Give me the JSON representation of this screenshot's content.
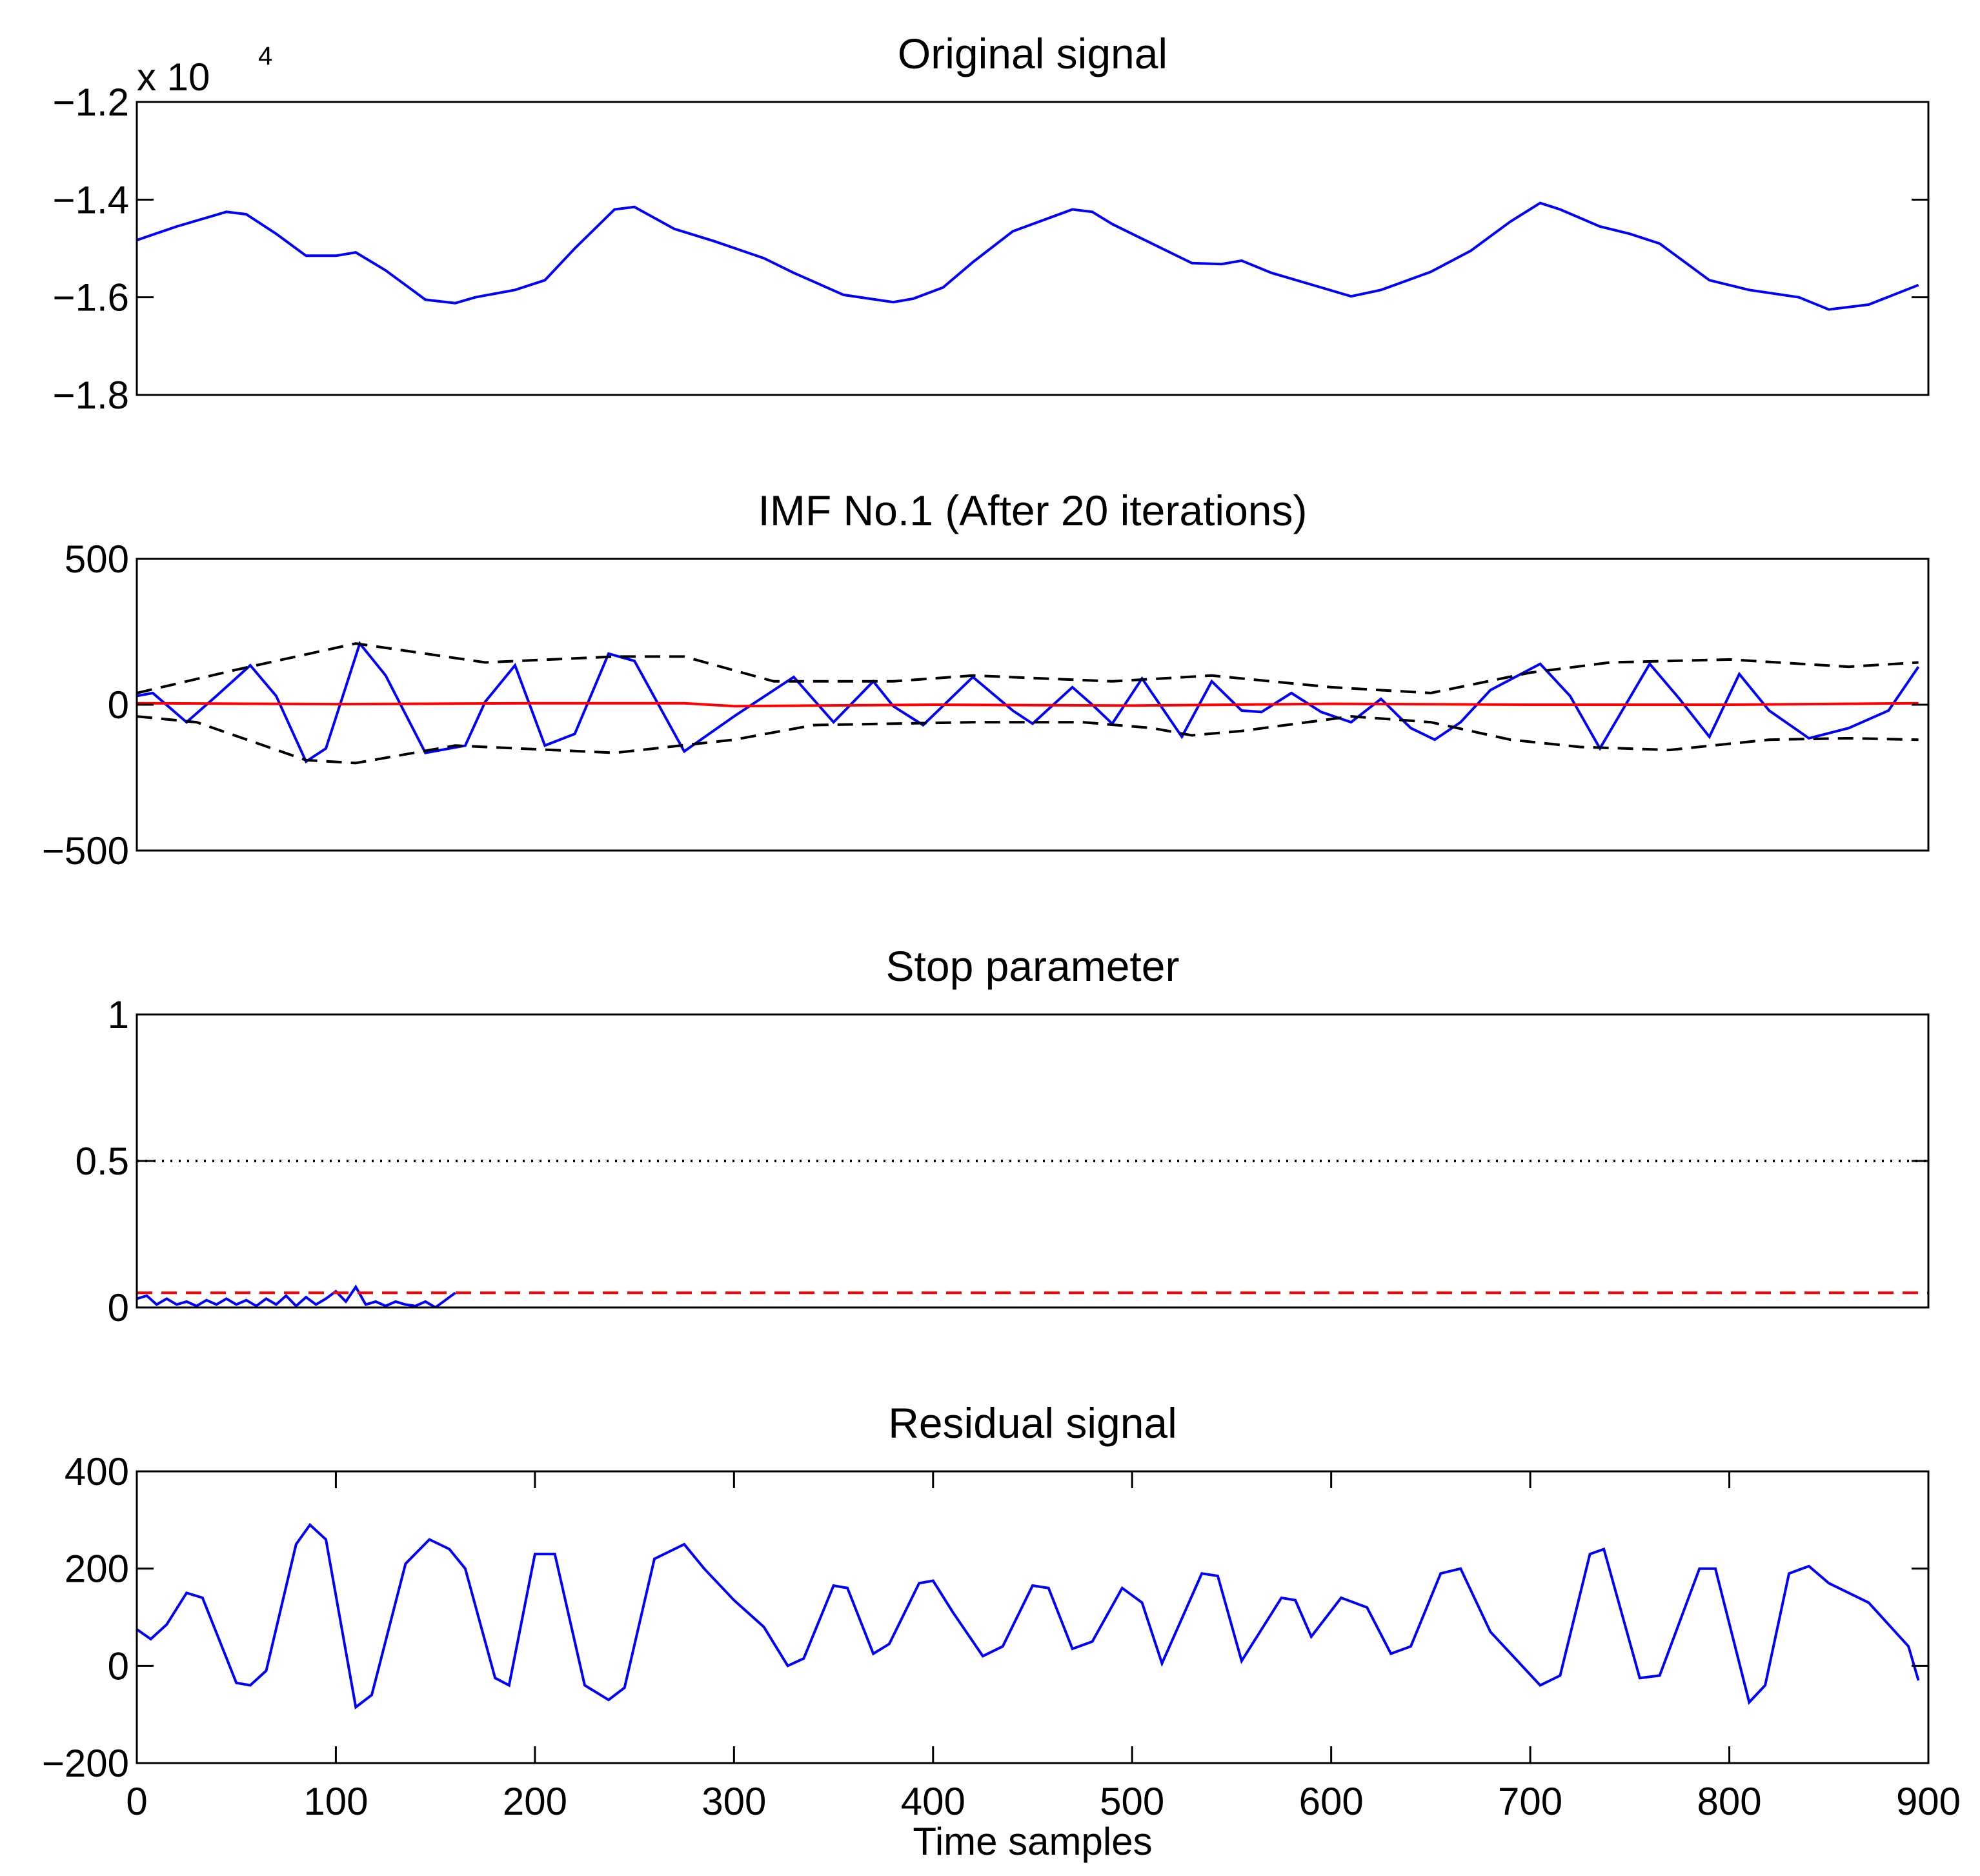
{
  "chart_data": [
    {
      "type": "line",
      "title": "Original signal",
      "xlabel": "",
      "ylabel": "",
      "xlim": [
        0,
        900
      ],
      "ylim": [
        -1.8,
        -1.2
      ],
      "y_scale_label": {
        "base": "x 10",
        "exponent": "4"
      },
      "yticks": [
        -1.8,
        -1.6,
        -1.4,
        -1.2
      ],
      "ytick_labels": [
        "−1.8",
        "−1.6",
        "−1.4",
        "−1.2"
      ],
      "series": [
        {
          "name": "signal",
          "color": "#0000ff",
          "style": "solid",
          "x": [
            0,
            20,
            45,
            55,
            70,
            85,
            100,
            110,
            125,
            145,
            160,
            170,
            190,
            205,
            220,
            240,
            250,
            270,
            290,
            315,
            330,
            355,
            380,
            390,
            405,
            420,
            440,
            470,
            480,
            490,
            505,
            530,
            545,
            555,
            570,
            595,
            610,
            625,
            650,
            670,
            690,
            705,
            715,
            735,
            750,
            765,
            790,
            810,
            835,
            850,
            870,
            895
          ],
          "y": [
            -1.483,
            -1.455,
            -1.425,
            -1.43,
            -1.47,
            -1.515,
            -1.515,
            -1.508,
            -1.545,
            -1.605,
            -1.612,
            -1.6,
            -1.585,
            -1.565,
            -1.5,
            -1.42,
            -1.415,
            -1.46,
            -1.485,
            -1.52,
            -1.55,
            -1.595,
            -1.61,
            -1.603,
            -1.58,
            -1.528,
            -1.465,
            -1.42,
            -1.425,
            -1.45,
            -1.48,
            -1.53,
            -1.532,
            -1.525,
            -1.55,
            -1.58,
            -1.598,
            -1.585,
            -1.548,
            -1.505,
            -1.445,
            -1.407,
            -1.42,
            -1.455,
            -1.47,
            -1.49,
            -1.565,
            -1.585,
            -1.6,
            -1.625,
            -1.615,
            -1.575
          ]
        }
      ]
    },
    {
      "type": "line",
      "title": "IMF No.1 (After 20 iterations)",
      "xlabel": "",
      "ylabel": "",
      "xlim": [
        0,
        900
      ],
      "ylim": [
        -500,
        500
      ],
      "yticks": [
        -500,
        0,
        500
      ],
      "ytick_labels": [
        "−500",
        "0",
        "500"
      ],
      "series": [
        {
          "name": "IMF",
          "color": "#0000ff",
          "style": "solid",
          "x": [
            0,
            8,
            25,
            40,
            57,
            70,
            85,
            95,
            112,
            125,
            145,
            165,
            175,
            190,
            205,
            220,
            237,
            250,
            275,
            300,
            330,
            350,
            370,
            380,
            395,
            420,
            440,
            450,
            470,
            480,
            490,
            505,
            525,
            540,
            555,
            565,
            580,
            595,
            610,
            625,
            640,
            652,
            665,
            680,
            705,
            720,
            735,
            760,
            775,
            790,
            805,
            820,
            840,
            860,
            880,
            895
          ],
          "y": [
            30,
            40,
            -60,
            30,
            135,
            30,
            -195,
            -150,
            210,
            100,
            -165,
            -140,
            10,
            135,
            -140,
            -100,
            175,
            150,
            -160,
            -40,
            95,
            -60,
            80,
            -5,
            -70,
            95,
            -20,
            -65,
            60,
            0,
            -65,
            90,
            -110,
            80,
            -20,
            -25,
            40,
            -25,
            -60,
            20,
            -80,
            -120,
            -60,
            50,
            140,
            30,
            -150,
            140,
            20,
            -110,
            105,
            -20,
            -115,
            -80,
            -20,
            130
          ]
        },
        {
          "name": "mean envelope",
          "color": "#ff0000",
          "style": "solid",
          "x": [
            0,
            100,
            200,
            275,
            300,
            400,
            500,
            600,
            700,
            800,
            895
          ],
          "y": [
            5,
            2,
            5,
            5,
            -5,
            0,
            -3,
            3,
            0,
            0,
            5
          ]
        },
        {
          "name": "upper envelope",
          "color": "#000000",
          "style": "dashed",
          "x": [
            0,
            50,
            110,
            175,
            240,
            275,
            320,
            380,
            420,
            490,
            540,
            600,
            650,
            700,
            740,
            800,
            860,
            895
          ],
          "y": [
            40,
            120,
            210,
            145,
            165,
            165,
            80,
            80,
            100,
            80,
            100,
            60,
            40,
            110,
            145,
            155,
            130,
            145
          ]
        },
        {
          "name": "lower envelope",
          "color": "#000000",
          "style": "dashed",
          "x": [
            0,
            30,
            85,
            110,
            160,
            240,
            300,
            340,
            420,
            475,
            510,
            530,
            555,
            610,
            650,
            690,
            725,
            770,
            820,
            860,
            895
          ],
          "y": [
            -40,
            -60,
            -190,
            -200,
            -140,
            -165,
            -120,
            -70,
            -60,
            -60,
            -80,
            -105,
            -90,
            -40,
            -60,
            -120,
            -145,
            -155,
            -120,
            -115,
            -120
          ]
        }
      ]
    },
    {
      "type": "line",
      "title": "Stop parameter",
      "xlabel": "",
      "ylabel": "",
      "xlim": [
        0,
        900
      ],
      "ylim": [
        0,
        1
      ],
      "yticks": [
        0,
        0.5,
        1
      ],
      "ytick_labels": [
        "0",
        "0.5",
        "1"
      ],
      "series": [
        {
          "name": "stop parameter",
          "color": "#0000ff",
          "style": "solid",
          "x": [
            0,
            5,
            10,
            15,
            20,
            25,
            30,
            35,
            40,
            45,
            50,
            55,
            60,
            65,
            70,
            75,
            80,
            85,
            90,
            95,
            100,
            105,
            110,
            115,
            120,
            125,
            130,
            135,
            140,
            145,
            150,
            155,
            160
          ],
          "y": [
            0.03,
            0.04,
            0.01,
            0.03,
            0.01,
            0.02,
            0.005,
            0.025,
            0.01,
            0.03,
            0.01,
            0.025,
            0.005,
            0.03,
            0.01,
            0.04,
            0.005,
            0.035,
            0.01,
            0.03,
            0.055,
            0.02,
            0.07,
            0.01,
            0.02,
            0.005,
            0.02,
            0.01,
            0.005,
            0.02,
            0.0,
            0.025,
            0.05
          ]
        },
        {
          "name": "threshold 1",
          "color": "#000000",
          "style": "dotted",
          "x": [
            0,
            900
          ],
          "y": [
            0.5,
            0.5
          ]
        },
        {
          "name": "threshold 2",
          "color": "#ff0000",
          "style": "dashed",
          "x": [
            0,
            900
          ],
          "y": [
            0.05,
            0.05
          ]
        }
      ]
    },
    {
      "type": "line",
      "title": "Residual signal",
      "xlabel": "Time samples",
      "ylabel": "",
      "xlim": [
        0,
        900
      ],
      "ylim": [
        -200,
        400
      ],
      "xticks": [
        0,
        100,
        200,
        300,
        400,
        500,
        600,
        700,
        800,
        900
      ],
      "xtick_labels": [
        "0",
        "100",
        "200",
        "300",
        "400",
        "500",
        "600",
        "700",
        "800",
        "900"
      ],
      "yticks": [
        -200,
        0,
        200,
        400
      ],
      "ytick_labels": [
        "−200",
        "0",
        "200",
        "400"
      ],
      "series": [
        {
          "name": "residual",
          "color": "#0000ff",
          "style": "solid",
          "x": [
            0,
            7,
            15,
            25,
            33,
            50,
            57,
            65,
            80,
            87,
            95,
            110,
            118,
            135,
            147,
            157,
            165,
            180,
            187,
            200,
            210,
            225,
            237,
            245,
            260,
            275,
            285,
            300,
            315,
            327,
            335,
            350,
            357,
            370,
            378,
            393,
            400,
            410,
            425,
            435,
            450,
            458,
            470,
            480,
            495,
            505,
            515,
            535,
            543,
            555,
            575,
            582,
            590,
            605,
            618,
            630,
            640,
            655,
            665,
            680,
            705,
            715,
            730,
            737,
            755,
            765,
            785,
            793,
            810,
            818,
            830,
            840,
            850,
            870,
            890,
            895
          ],
          "y": [
            75,
            55,
            85,
            150,
            140,
            -35,
            -40,
            -10,
            250,
            290,
            260,
            -85,
            -60,
            210,
            260,
            240,
            200,
            -25,
            -40,
            230,
            230,
            -40,
            -70,
            -45,
            220,
            250,
            200,
            135,
            80,
            0,
            15,
            165,
            160,
            25,
            45,
            170,
            175,
            110,
            20,
            40,
            165,
            160,
            35,
            50,
            160,
            130,
            5,
            190,
            185,
            10,
            140,
            135,
            60,
            140,
            120,
            25,
            40,
            190,
            200,
            70,
            -40,
            -20,
            230,
            240,
            -25,
            -20,
            200,
            200,
            -75,
            -40,
            190,
            205,
            170,
            130,
            40,
            -30
          ]
        }
      ]
    }
  ]
}
